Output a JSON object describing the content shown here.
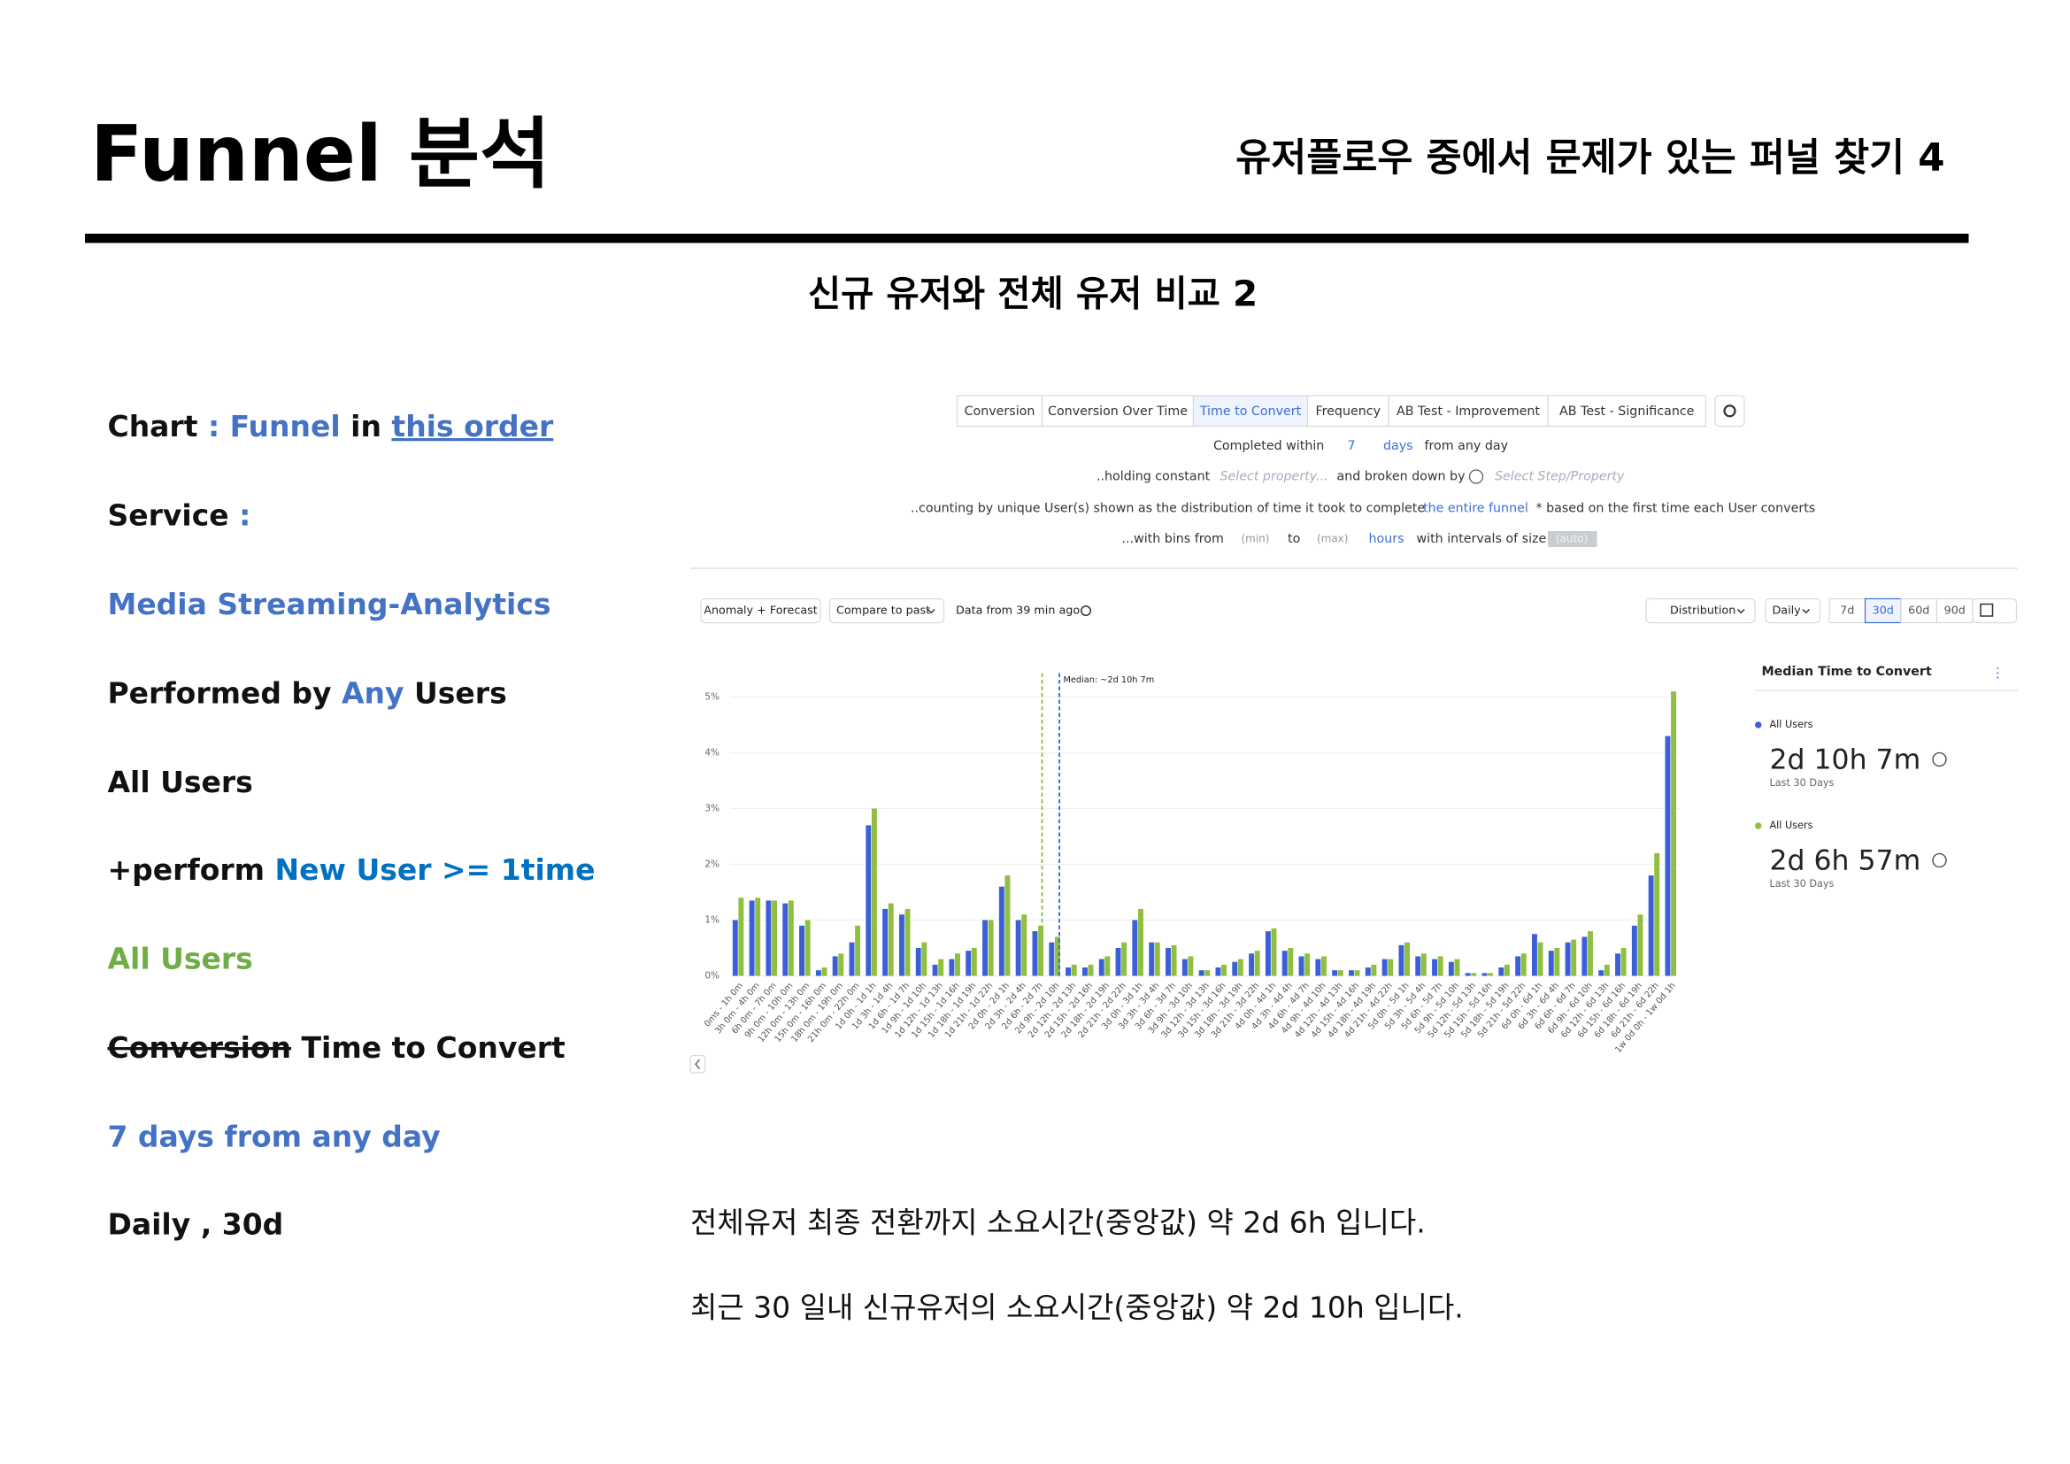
{
  "header": {
    "title": "Funnel 분석",
    "subtitle": "유저플로우 중에서 문제가 있는 퍼널 찾기 4"
  },
  "section_title": "신규 유저와 전체 유저 비교 2",
  "settings_list": [
    [
      "Chart",
      " : ",
      "Funnel",
      " in ",
      "this order"
    ],
    [
      "Service",
      " :"
    ],
    [
      "Media Streaming-Analytics"
    ],
    [
      "Performed by ",
      "Any",
      " Users"
    ],
    [
      "All Users"
    ],
    [
      "+perform ",
      "New User >= 1time"
    ],
    [
      "All Users"
    ],
    [
      "Conversion",
      " Time to Convert"
    ],
    [
      "7 days from any day"
    ],
    [
      "Daily , 30d"
    ]
  ],
  "notes": [
    "전체유저 최종 전환까지 소요시간(중앙값) 약 2d 6h 입니다.",
    "최근 30 일내 신규유저의 소요시간(중앙값) 약 2d 10h 입니다."
  ],
  "ui": {
    "tabs": [
      "Conversion",
      "Conversion Over Time",
      "Time to Convert",
      "Frequency",
      "AB Test - Improvement",
      "AB Test - Significance"
    ],
    "query": {
      "completed_within": "Completed within",
      "days_value": "7",
      "days_unit": "days",
      "from": "from any day",
      "holding": "..holding constant",
      "select_property": "Select property...",
      "broken": "and broken down by",
      "select_step": "Select Step/Property",
      "counting": "..counting by unique User(s) shown as the distribution of time it took to complete",
      "entire": "the entire funnel",
      "based": "* based on the first time each User converts",
      "bins": "...with bins from",
      "min": "(min)",
      "to": "to",
      "max": "(max)",
      "hours": "hours",
      "intervals": "with intervals of size",
      "auto": "(auto)"
    },
    "toolbar": {
      "anomaly": "Anomaly + Forecast",
      "compare": "Compare to past",
      "data_from": "Data from 39 min ago",
      "distribution": "Distribution",
      "interval": "Daily",
      "ranges": [
        "7d",
        "30d",
        "60d",
        "90d"
      ]
    },
    "side": {
      "title": "Median Time to Convert",
      "cards": [
        {
          "segment": "All Users",
          "value": "2d 10h 7m",
          "period": "Last 30 Days"
        },
        {
          "segment": "All Users",
          "value": "2d 6h 57m",
          "period": "Last 30 Days"
        }
      ]
    }
  },
  "chart_data": {
    "type": "bar",
    "median_label": "Median: ~2d 10h 7m",
    "categories": [
      "0ms - 1h 0m",
      "3h 0m - 4h 0m",
      "6h 0m - 7h 0m",
      "9h 0m - 10h 0m",
      "12h 0m - 13h 0m",
      "15h 0m - 16h 0m",
      "18h 0m - 19h 0m",
      "21h 0m - 22h 0m",
      "1d 0h - 1d 1h",
      "1d 3h - 1d 4h",
      "1d 6h - 1d 7h",
      "1d 9h - 1d 10h",
      "1d 12h - 1d 13h",
      "1d 15h - 1d 16h",
      "1d 18h - 1d 19h",
      "1d 21h - 1d 22h",
      "2d 0h - 2d 1h",
      "2d 3h - 2d 4h",
      "2d 6h - 2d 7h",
      "2d 9h - 2d 10h",
      "2d 12h - 2d 13h",
      "2d 15h - 2d 16h",
      "2d 18h - 2d 19h",
      "2d 21h - 2d 22h",
      "3d 0h - 3d 1h",
      "3d 3h - 3d 4h",
      "3d 6h - 3d 7h",
      "3d 9h - 3d 10h",
      "3d 12h - 3d 13h",
      "3d 15h - 3d 16h",
      "3d 18h - 3d 19h",
      "3d 21h - 3d 22h",
      "4d 0h - 4d 1h",
      "4d 3h - 4d 4h",
      "4d 6h - 4d 7h",
      "4d 9h - 4d 10h",
      "4d 12h - 4d 13h",
      "4d 15h - 4d 16h",
      "4d 18h - 4d 19h",
      "4d 21h - 4d 22h",
      "5d 0h - 5d 1h",
      "5d 3h - 5d 4h",
      "5d 6h - 5d 7h",
      "5d 9h - 5d 10h",
      "5d 12h - 5d 13h",
      "5d 15h - 5d 16h",
      "5d 18h - 5d 19h",
      "5d 21h - 5d 22h",
      "6d 0h - 6d 1h",
      "6d 3h - 6d 4h",
      "6d 6h - 6d 7h",
      "6d 9h - 6d 10h",
      "6d 12h - 6d 13h",
      "6d 15h - 6d 16h",
      "6d 18h - 6d 19h",
      "6d 21h - 6d 22h",
      "1w 0d 0h - 1w 0d 1h"
    ],
    "series": [
      {
        "name": "All Users",
        "color": "#3b5fd9",
        "values": [
          1.0,
          1.35,
          1.35,
          1.3,
          0.9,
          0.1,
          0.35,
          0.6,
          2.7,
          1.2,
          1.1,
          0.5,
          0.2,
          0.3,
          0.45,
          1.0,
          1.6,
          1.0,
          0.8,
          0.6,
          0.15,
          0.15,
          0.3,
          0.5,
          1.0,
          0.6,
          0.5,
          0.3,
          0.1,
          0.15,
          0.25,
          0.4,
          0.8,
          0.45,
          0.35,
          0.3,
          0.1,
          0.1,
          0.15,
          0.3,
          0.55,
          0.35,
          0.3,
          0.25,
          0.05,
          0.05,
          0.15,
          0.35,
          0.75,
          0.45,
          0.6,
          0.7,
          0.1,
          0.4,
          0.9,
          1.8,
          4.3
        ]
      },
      {
        "name": "All Users",
        "color": "#8fbf3f",
        "values": [
          1.4,
          1.4,
          1.35,
          1.35,
          1.0,
          0.15,
          0.4,
          0.9,
          3.0,
          1.3,
          1.2,
          0.6,
          0.3,
          0.4,
          0.5,
          1.0,
          1.8,
          1.1,
          0.9,
          0.7,
          0.2,
          0.2,
          0.35,
          0.6,
          1.2,
          0.6,
          0.55,
          0.35,
          0.1,
          0.2,
          0.3,
          0.45,
          0.85,
          0.5,
          0.4,
          0.35,
          0.1,
          0.1,
          0.2,
          0.3,
          0.6,
          0.4,
          0.35,
          0.3,
          0.05,
          0.05,
          0.2,
          0.4,
          0.6,
          0.5,
          0.65,
          0.8,
          0.2,
          0.5,
          1.1,
          2.2,
          5.1
        ]
      }
    ],
    "ylim": [
      0,
      5.5
    ],
    "yticks": [
      {
        "value": 0,
        "label": "0%"
      },
      {
        "value": 1,
        "label": "1%"
      },
      {
        "value": 2,
        "label": "2%"
      },
      {
        "value": 3,
        "label": "3%"
      },
      {
        "value": 4,
        "label": "4%"
      },
      {
        "value": 5,
        "label": "5%"
      }
    ],
    "grid": true
  }
}
